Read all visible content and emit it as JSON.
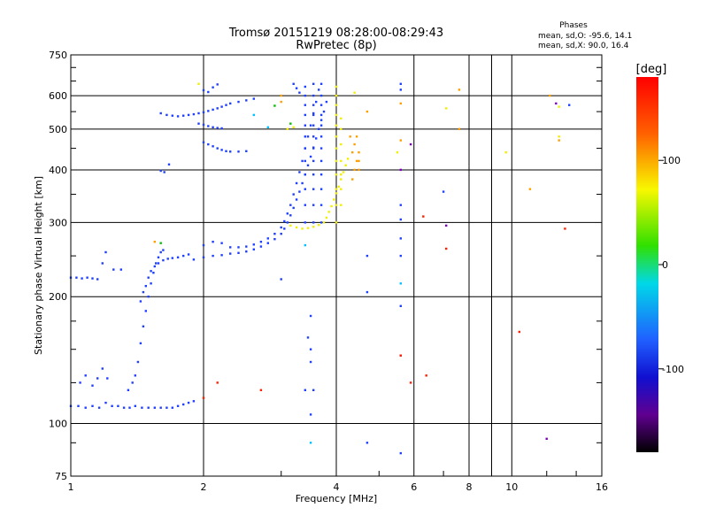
{
  "chart_data": {
    "type": "scatter",
    "title": "Tromsø 20151219 08:28:00-08:29:43",
    "subtitle": "RwPretec (8p)",
    "xlabel": "Frequency [MHz]",
    "ylabel": "Stationary phase Virtual Height [km]",
    "x_scale": "log",
    "y_scale": "log",
    "xlim": [
      1,
      16
    ],
    "ylim": [
      75,
      750
    ],
    "x_ticks": [
      1,
      2,
      4,
      6,
      8,
      10,
      16
    ],
    "x_tick_labels": [
      "1",
      "2",
      "4",
      "6",
      "8",
      "10",
      "16"
    ],
    "y_ticks": [
      75,
      100,
      200,
      300,
      400,
      500,
      600,
      750
    ],
    "y_tick_labels": [
      "75",
      "100",
      "200",
      "300",
      "400",
      "500",
      "600",
      "750"
    ],
    "grid": true,
    "stats": {
      "title": "Phases",
      "line1": "mean, sd,O: -95.6, 14.1",
      "line2": "mean, sd,X:  90.0, 16.4"
    },
    "colorbar": {
      "label": "[deg]",
      "range": [
        -180,
        180
      ],
      "ticks": [
        100,
        0,
        -100
      ],
      "tick_labels": [
        "100",
        "0",
        "-100"
      ]
    },
    "series": [
      {
        "color": "#2040ff",
        "points": [
          [
            1.0,
            110
          ],
          [
            1.04,
            110
          ],
          [
            1.08,
            109
          ],
          [
            1.12,
            110
          ],
          [
            1.16,
            109
          ],
          [
            1.2,
            112
          ],
          [
            1.24,
            110
          ],
          [
            1.28,
            110
          ],
          [
            1.32,
            109
          ],
          [
            1.36,
            109
          ],
          [
            1.4,
            110
          ],
          [
            1.45,
            109
          ],
          [
            1.5,
            109
          ],
          [
            1.55,
            109
          ],
          [
            1.6,
            109
          ],
          [
            1.65,
            109
          ],
          [
            1.7,
            109
          ],
          [
            1.75,
            110
          ],
          [
            1.8,
            111
          ],
          [
            1.85,
            112
          ],
          [
            1.9,
            113
          ],
          [
            1.0,
            222
          ],
          [
            1.03,
            222
          ],
          [
            1.06,
            221
          ],
          [
            1.09,
            222
          ],
          [
            1.12,
            221
          ],
          [
            1.15,
            220
          ],
          [
            1.18,
            240
          ],
          [
            1.2,
            255
          ],
          [
            1.25,
            232
          ],
          [
            1.3,
            232
          ],
          [
            1.05,
            125
          ],
          [
            1.08,
            130
          ],
          [
            1.12,
            123
          ],
          [
            1.15,
            128
          ],
          [
            1.18,
            135
          ],
          [
            1.21,
            128
          ],
          [
            1.35,
            120
          ],
          [
            1.38,
            125
          ],
          [
            1.4,
            130
          ],
          [
            1.42,
            140
          ],
          [
            1.44,
            155
          ],
          [
            1.46,
            170
          ],
          [
            1.48,
            185
          ],
          [
            1.5,
            200
          ],
          [
            1.52,
            215
          ],
          [
            1.54,
            228
          ],
          [
            1.56,
            240
          ],
          [
            1.58,
            248
          ],
          [
            1.6,
            255
          ],
          [
            1.62,
            258
          ],
          [
            1.44,
            195
          ],
          [
            1.46,
            205
          ],
          [
            1.48,
            212
          ],
          [
            1.5,
            222
          ],
          [
            1.52,
            230
          ],
          [
            1.55,
            236
          ],
          [
            1.58,
            240
          ],
          [
            1.62,
            244
          ],
          [
            1.66,
            246
          ],
          [
            1.7,
            247
          ],
          [
            1.75,
            248
          ],
          [
            1.8,
            250
          ],
          [
            1.85,
            252
          ],
          [
            1.6,
            398
          ],
          [
            1.63,
            395
          ],
          [
            1.67,
            412
          ],
          [
            1.6,
            545
          ],
          [
            1.65,
            540
          ],
          [
            1.7,
            538
          ],
          [
            1.75,
            536
          ],
          [
            1.8,
            538
          ],
          [
            1.85,
            540
          ],
          [
            1.9,
            542
          ],
          [
            1.95,
            545
          ],
          [
            2.0,
            548
          ],
          [
            2.05,
            552
          ],
          [
            2.1,
            556
          ],
          [
            2.15,
            560
          ],
          [
            2.2,
            565
          ],
          [
            2.25,
            570
          ],
          [
            2.3,
            575
          ],
          [
            2.4,
            580
          ],
          [
            2.5,
            585
          ],
          [
            2.6,
            590
          ],
          [
            1.95,
            515
          ],
          [
            2.0,
            512
          ],
          [
            2.05,
            508
          ],
          [
            2.1,
            505
          ],
          [
            2.15,
            503
          ],
          [
            2.2,
            502
          ],
          [
            2.0,
            465
          ],
          [
            2.05,
            460
          ],
          [
            2.1,
            455
          ],
          [
            2.15,
            450
          ],
          [
            2.2,
            446
          ],
          [
            2.25,
            443
          ],
          [
            2.3,
            442
          ],
          [
            2.4,
            442
          ],
          [
            2.5,
            443
          ],
          [
            2.0,
            618
          ],
          [
            2.05,
            612
          ],
          [
            2.1,
            628
          ],
          [
            2.15,
            638
          ],
          [
            1.9,
            245
          ],
          [
            2.0,
            248
          ],
          [
            2.1,
            250
          ],
          [
            2.2,
            251
          ],
          [
            2.3,
            253
          ],
          [
            2.4,
            254
          ],
          [
            2.5,
            256
          ],
          [
            2.6,
            259
          ],
          [
            2.7,
            263
          ],
          [
            2.8,
            268
          ],
          [
            2.9,
            274
          ],
          [
            3.0,
            282
          ],
          [
            3.05,
            290
          ],
          [
            3.1,
            300
          ],
          [
            3.15,
            312
          ],
          [
            3.2,
            325
          ],
          [
            3.25,
            340
          ],
          [
            3.3,
            355
          ],
          [
            3.35,
            372
          ],
          [
            3.4,
            390
          ],
          [
            3.45,
            410
          ],
          [
            3.5,
            430
          ],
          [
            3.55,
            452
          ],
          [
            3.6,
            475
          ],
          [
            3.65,
            500
          ],
          [
            3.7,
            525
          ],
          [
            3.75,
            550
          ],
          [
            3.8,
            580
          ],
          [
            2.0,
            265
          ],
          [
            2.1,
            270
          ],
          [
            2.2,
            268
          ],
          [
            2.3,
            262
          ],
          [
            2.4,
            262
          ],
          [
            2.5,
            263
          ],
          [
            2.6,
            266
          ],
          [
            2.7,
            270
          ],
          [
            2.8,
            275
          ],
          [
            2.9,
            282
          ],
          [
            3.0,
            292
          ],
          [
            3.05,
            302
          ],
          [
            3.1,
            315
          ],
          [
            3.15,
            330
          ],
          [
            3.2,
            350
          ],
          [
            3.25,
            372
          ],
          [
            3.3,
            395
          ],
          [
            3.35,
            420
          ],
          [
            3.4,
            450
          ],
          [
            3.45,
            480
          ],
          [
            3.5,
            510
          ],
          [
            3.55,
            545
          ],
          [
            3.6,
            580
          ],
          [
            3.65,
            620
          ],
          [
            3.4,
            300
          ],
          [
            3.4,
            330
          ],
          [
            3.4,
            360
          ],
          [
            3.4,
            390
          ],
          [
            3.4,
            420
          ],
          [
            3.4,
            450
          ],
          [
            3.4,
            480
          ],
          [
            3.4,
            510
          ],
          [
            3.4,
            540
          ],
          [
            3.4,
            570
          ],
          [
            3.4,
            600
          ],
          [
            3.4,
            630
          ],
          [
            3.55,
            300
          ],
          [
            3.55,
            330
          ],
          [
            3.55,
            360
          ],
          [
            3.55,
            390
          ],
          [
            3.55,
            420
          ],
          [
            3.55,
            450
          ],
          [
            3.55,
            480
          ],
          [
            3.55,
            510
          ],
          [
            3.55,
            540
          ],
          [
            3.55,
            570
          ],
          [
            3.55,
            600
          ],
          [
            3.55,
            640
          ],
          [
            3.7,
            300
          ],
          [
            3.7,
            330
          ],
          [
            3.7,
            360
          ],
          [
            3.7,
            390
          ],
          [
            3.7,
            420
          ],
          [
            3.7,
            450
          ],
          [
            3.7,
            480
          ],
          [
            3.7,
            510
          ],
          [
            3.7,
            540
          ],
          [
            3.7,
            570
          ],
          [
            3.7,
            600
          ],
          [
            3.7,
            640
          ],
          [
            3.2,
            640
          ],
          [
            3.25,
            625
          ],
          [
            3.3,
            610
          ],
          [
            3.5,
            180
          ],
          [
            3.5,
            150
          ],
          [
            3.5,
            140
          ],
          [
            3.5,
            105
          ],
          [
            3.55,
            120
          ],
          [
            3.4,
            120
          ],
          [
            3.45,
            160
          ],
          [
            5.6,
            250
          ],
          [
            5.6,
            275
          ],
          [
            5.6,
            305
          ],
          [
            5.6,
            330
          ],
          [
            5.6,
            190
          ],
          [
            5.6,
            145
          ],
          [
            5.6,
            640
          ],
          [
            5.6,
            620
          ],
          [
            5.6,
            85
          ],
          [
            4.7,
            250
          ],
          [
            4.7,
            205
          ],
          [
            4.7,
            90
          ],
          [
            3.0,
            220
          ],
          [
            7.0,
            355
          ],
          [
            13.5,
            570
          ]
        ]
      },
      {
        "color": "#00c0ff",
        "points": [
          [
            2.6,
            540
          ],
          [
            3.5,
            90
          ],
          [
            5.6,
            215
          ],
          [
            3.4,
            265
          ],
          [
            2.8,
            505
          ]
        ]
      },
      {
        "color": "#00c000",
        "points": [
          [
            3.15,
            515
          ],
          [
            1.6,
            268
          ],
          [
            2.9,
            568
          ]
        ]
      },
      {
        "color": "#f0f000",
        "points": [
          [
            3.15,
            295
          ],
          [
            3.25,
            292
          ],
          [
            3.35,
            290
          ],
          [
            3.45,
            291
          ],
          [
            3.55,
            293
          ],
          [
            3.65,
            296
          ],
          [
            3.75,
            300
          ],
          [
            3.8,
            308
          ],
          [
            3.85,
            318
          ],
          [
            3.9,
            328
          ],
          [
            3.95,
            340
          ],
          [
            4.0,
            352
          ],
          [
            4.05,
            365
          ],
          [
            4.1,
            380
          ],
          [
            4.15,
            395
          ],
          [
            4.2,
            410
          ],
          [
            4.25,
            425
          ],
          [
            4.0,
            300
          ],
          [
            4.0,
            330
          ],
          [
            4.0,
            360
          ],
          [
            4.0,
            390
          ],
          [
            4.0,
            420
          ],
          [
            4.0,
            450
          ],
          [
            4.0,
            480
          ],
          [
            4.0,
            510
          ],
          [
            4.0,
            540
          ],
          [
            4.0,
            570
          ],
          [
            4.0,
            600
          ],
          [
            4.0,
            630
          ],
          [
            4.1,
            330
          ],
          [
            4.1,
            360
          ],
          [
            4.1,
            390
          ],
          [
            4.1,
            420
          ],
          [
            4.1,
            460
          ],
          [
            4.1,
            500
          ],
          [
            4.1,
            530
          ],
          [
            3.2,
            505
          ],
          [
            3.1,
            500
          ],
          [
            1.95,
            640
          ],
          [
            4.4,
            610
          ],
          [
            5.5,
            440
          ],
          [
            7.1,
            560
          ],
          [
            9.7,
            440
          ],
          [
            12.8,
            565
          ],
          [
            12.8,
            480
          ]
        ]
      },
      {
        "color": "#ffa000",
        "points": [
          [
            4.35,
            380
          ],
          [
            4.4,
            400
          ],
          [
            4.45,
            420
          ],
          [
            4.5,
            440
          ],
          [
            4.4,
            460
          ],
          [
            4.45,
            480
          ],
          [
            4.5,
            420
          ],
          [
            4.35,
            440
          ],
          [
            4.5,
            400
          ],
          [
            4.3,
            480
          ],
          [
            7.6,
            500
          ],
          [
            7.6,
            620
          ],
          [
            12.2,
            600
          ],
          [
            12.8,
            470
          ],
          [
            11.0,
            360
          ],
          [
            5.6,
            470
          ],
          [
            3.0,
            580
          ],
          [
            5.6,
            575
          ],
          [
            3.0,
            600
          ],
          [
            4.7,
            550
          ],
          [
            1.55,
            270
          ]
        ]
      },
      {
        "color": "#ff2000",
        "points": [
          [
            2.15,
            125
          ],
          [
            5.9,
            125
          ],
          [
            6.4,
            130
          ],
          [
            13.2,
            290
          ],
          [
            6.3,
            310
          ],
          [
            2.7,
            120
          ],
          [
            2.0,
            115
          ],
          [
            5.6,
            145
          ],
          [
            7.1,
            260
          ],
          [
            10.4,
            165
          ]
        ]
      },
      {
        "color": "#8000c0",
        "points": [
          [
            7.1,
            295
          ],
          [
            5.9,
            460
          ],
          [
            12.6,
            575
          ],
          [
            12.0,
            92
          ],
          [
            5.6,
            400
          ]
        ]
      }
    ]
  }
}
